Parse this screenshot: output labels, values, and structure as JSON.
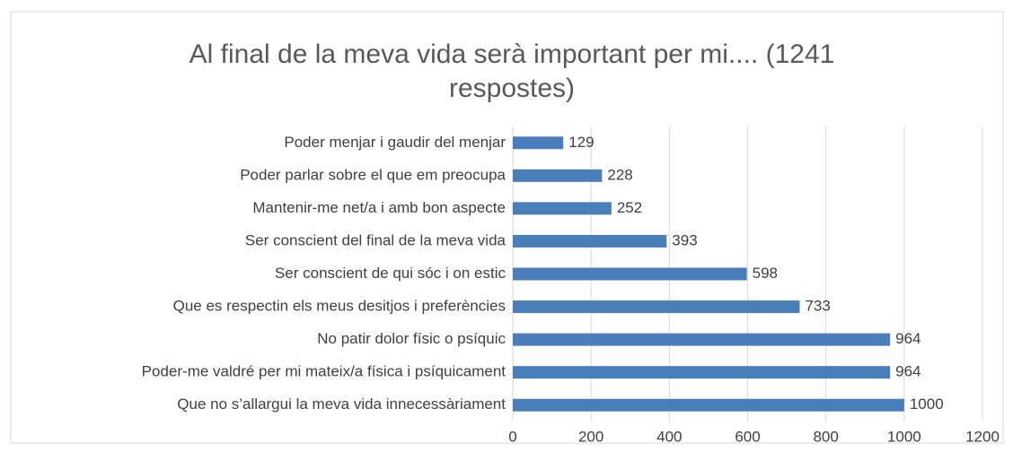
{
  "chart_data": {
    "type": "bar",
    "orientation": "horizontal",
    "title": "Al final de la meva vida serà important per mi.... (1241 respostes)",
    "categories": [
      "Poder menjar i gaudir del menjar",
      "Poder parlar sobre el que em preocupa",
      "Mantenir-me net/a i amb bon aspecte",
      "Ser conscient del final de la meva vida",
      "Ser conscient de qui sóc i on estic",
      "Que es respectin els meus desitjos i preferències",
      "No patir dolor físic o psíquic",
      "Poder-me valdré per mi mateix/a física i psíquicament",
      "Que no s’allargui la meva vida innecessàriament"
    ],
    "values": [
      129,
      228,
      252,
      393,
      598,
      733,
      964,
      964,
      1000
    ],
    "color": "#4a7ebb",
    "xlim": [
      0,
      1200
    ],
    "xticks": [
      0,
      200,
      400,
      600,
      800,
      1000,
      1200
    ],
    "grid": true
  }
}
